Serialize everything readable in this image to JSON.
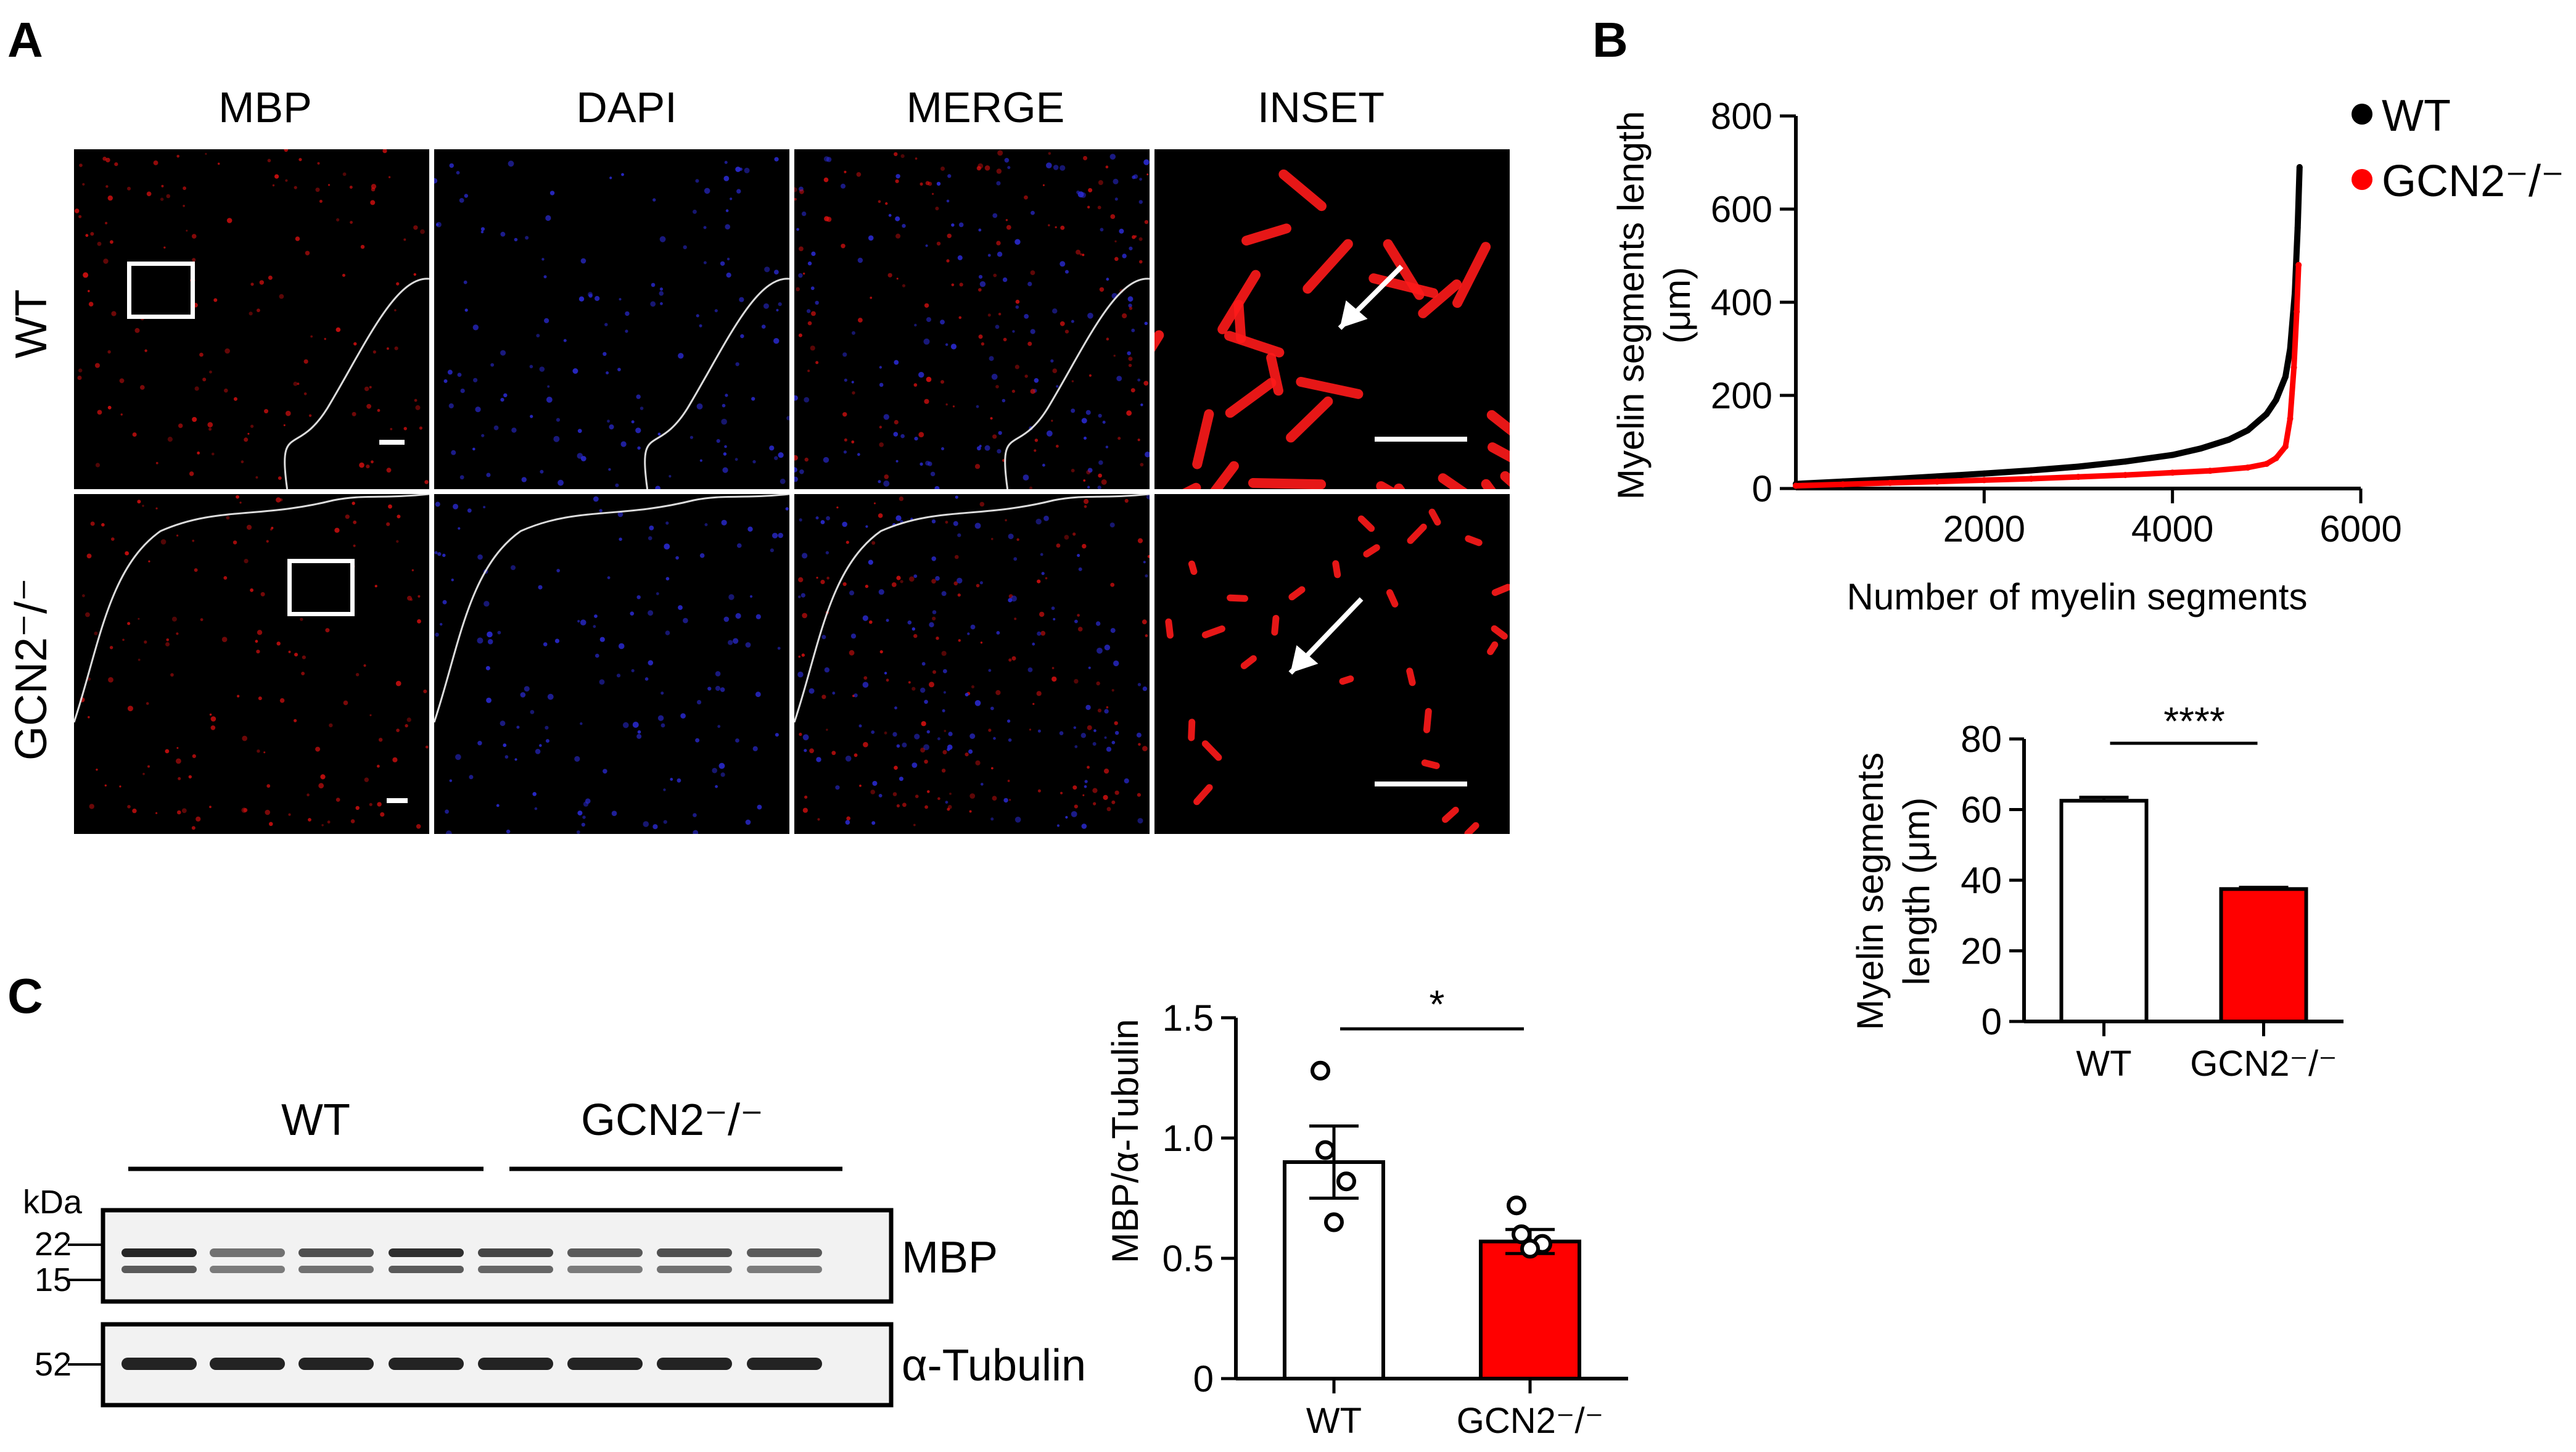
{
  "panel_labels": {
    "a": "A",
    "b": "B",
    "c": "C"
  },
  "panel_a": {
    "columns": [
      "MBP",
      "DAPI",
      "MERGE",
      "INSET"
    ],
    "rows": [
      "WT",
      "GCN2⁻/⁻"
    ]
  },
  "panel_b": {
    "legend": [
      {
        "label": "WT",
        "color": "#000000"
      },
      {
        "label": "GCN2⁻/⁻",
        "color": "#ff0000"
      }
    ]
  },
  "panel_c": {
    "blot_groups": [
      "WT",
      "GCN2⁻/⁻"
    ],
    "kda_label": "kDa",
    "mbp_markers": [
      "22",
      "15"
    ],
    "tubulin_marker": "52",
    "mbp_label": "MBP",
    "tubulin_label": "α-Tubulin"
  },
  "chart_data": [
    {
      "type": "line",
      "id": "cumulative",
      "ylabel": "Myelin segments length (μm)",
      "xlabel": "Number of myelin segments",
      "xlim": [
        0,
        6000
      ],
      "ylim": [
        0,
        800
      ],
      "xticks": [
        "2000",
        "4000",
        "6000"
      ],
      "yticks": [
        "0",
        "200",
        "400",
        "600",
        "800"
      ],
      "series": [
        {
          "name": "WT",
          "color": "#000000",
          "x": [
            0,
            500,
            1000,
            1500,
            2000,
            2500,
            3000,
            3500,
            4000,
            4300,
            4600,
            4800,
            5000,
            5100,
            5200,
            5250,
            5300,
            5330,
            5350
          ],
          "y": [
            10,
            15,
            20,
            26,
            32,
            39,
            47,
            58,
            72,
            86,
            105,
            125,
            160,
            190,
            240,
            300,
            420,
            560,
            690
          ]
        },
        {
          "name": "GCN2⁻/⁻",
          "color": "#ff0000",
          "x": [
            0,
            500,
            1000,
            1500,
            2000,
            2500,
            3000,
            3500,
            4000,
            4400,
            4800,
            5000,
            5100,
            5200,
            5250,
            5290,
            5320,
            5340
          ],
          "y": [
            6,
            9,
            12,
            15,
            18,
            21,
            25,
            29,
            34,
            38,
            45,
            53,
            65,
            90,
            150,
            260,
            380,
            480
          ]
        }
      ]
    },
    {
      "type": "bar",
      "id": "segments-bar",
      "ylabel": "Myelin segments length (μm)",
      "categories": [
        "WT",
        "GCN2⁻/⁻"
      ],
      "values": [
        62.5,
        37.5
      ],
      "errors": [
        1.0,
        0.5
      ],
      "colors": [
        "#ffffff",
        "#ff0000"
      ],
      "ylim": [
        0,
        80
      ],
      "yticks": [
        "0",
        "20",
        "40",
        "60",
        "80"
      ],
      "significance": "****"
    },
    {
      "type": "bar",
      "id": "mbp-ratio",
      "ylabel": "MBP/α-Tubulin",
      "categories": [
        "WT",
        "GCN2⁻/⁻"
      ],
      "values": [
        0.9,
        0.57
      ],
      "errors": [
        0.15,
        0.05
      ],
      "points": [
        [
          1.28,
          0.95,
          0.82,
          0.65
        ],
        [
          0.72,
          0.6,
          0.56,
          0.54
        ]
      ],
      "colors": [
        "#ffffff",
        "#ff0000"
      ],
      "ylim": [
        0,
        1.5
      ],
      "yticks": [
        "0",
        "0.5",
        "1.0",
        "1.5"
      ],
      "significance": "*"
    }
  ]
}
